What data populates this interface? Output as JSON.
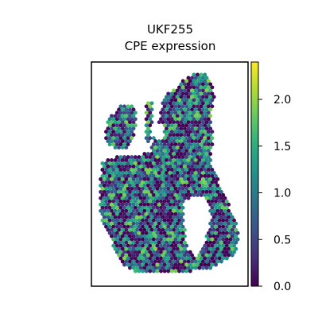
{
  "chart_data": {
    "type": "scatter",
    "title": "UKF255",
    "subtitle": "CPE expression",
    "xlabel": "",
    "ylabel": "",
    "colorbar": {
      "colormap": "viridis",
      "vmin": 0.0,
      "vmax": 2.4,
      "ticks": [
        0.0,
        0.5,
        1.0,
        1.5,
        2.0
      ],
      "tick_labels": [
        "0.0",
        "0.5",
        "1.0",
        "1.5",
        "2.0"
      ]
    },
    "grid": false,
    "legend": "colorbar-right",
    "spot_mean_expression": 0.85
  }
}
